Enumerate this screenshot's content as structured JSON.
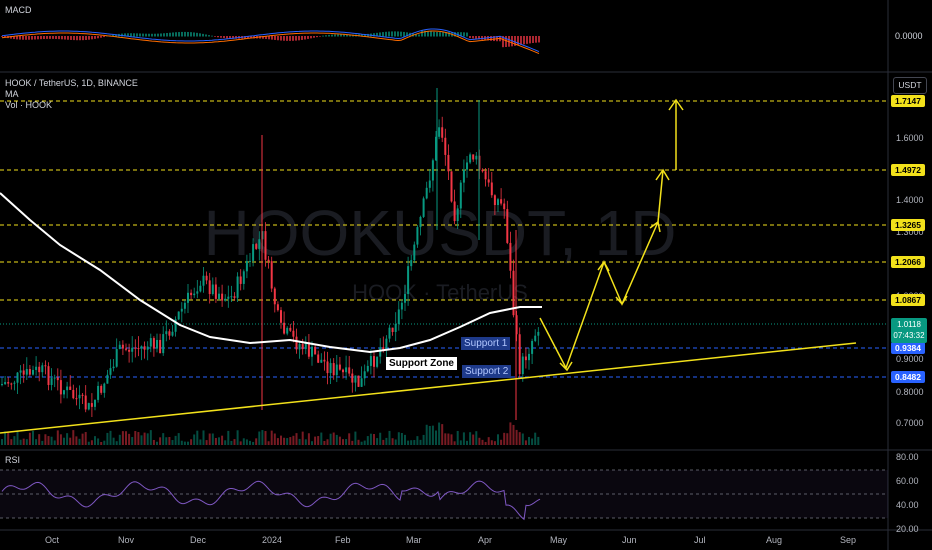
{
  "panes": {
    "macd": {
      "title": "MACD",
      "value": "0.0000"
    },
    "main": {
      "symbol": "HOOK / TetherUS, 1D, BINANCE",
      "ma_label": "MA",
      "vol_label": "Vol · HOOK",
      "watermark": "HOOKUSDT, 1D",
      "watermark_sub": "HOOK · TetherUS",
      "currency_button": "USDT",
      "y_ticks": [
        "1.6000",
        "1.4000",
        "1.3000",
        "1.0000",
        "0.9000",
        "0.8000",
        "0.7000"
      ],
      "levels": [
        {
          "label": "1.7147",
          "color": "#f2e11b",
          "style": "dashed"
        },
        {
          "label": "1.4972",
          "color": "#f2e11b",
          "style": "dashed"
        },
        {
          "label": "1.3265",
          "color": "#f2e11b",
          "style": "dashed"
        },
        {
          "label": "1.2066",
          "color": "#f2e11b",
          "style": "dashed"
        },
        {
          "label": "1.0867",
          "color": "#f2e11b",
          "style": "dashed"
        },
        {
          "label": "0.9384",
          "color": "#2962ff",
          "style": "dashed"
        },
        {
          "label": "0.8482",
          "color": "#2962ff",
          "style": "dashed"
        }
      ],
      "last_price": "1.0118",
      "countdown": "07:43:32",
      "annotations": {
        "support1": "Support 1",
        "support2": "Support 2",
        "support_zone": "Support Zone"
      }
    },
    "rsi": {
      "title": "RSI",
      "ticks": [
        "80.00",
        "60.00",
        "40.00",
        "20.00"
      ]
    }
  },
  "time_axis": [
    "Oct",
    "Nov",
    "Dec",
    "2024",
    "Feb",
    "Mar",
    "Apr",
    "May",
    "Jun",
    "Jul",
    "Aug",
    "Sep"
  ],
  "colors": {
    "up": "#089981",
    "down": "#f23645",
    "level": "#f2e11b",
    "support": "#2962ff",
    "rsi": "#7e57c2",
    "ma": "#ffffff"
  }
}
